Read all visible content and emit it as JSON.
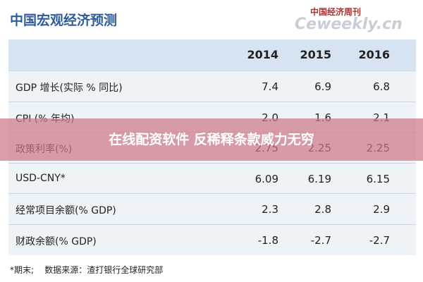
{
  "title": "中国宏观经济预测",
  "logo": {
    "cn": "中国经济周刊",
    "en": "Ceweekly.cn"
  },
  "table": {
    "header": [
      "2014",
      "2015",
      "2016"
    ],
    "rows": [
      [
        "GDP 增长(实际 % 同比)",
        "7.4",
        "6.9",
        "6.8"
      ],
      [
        "CPI (% 年均)",
        "2.0",
        "1.6",
        "2.1"
      ],
      [
        "政策利率(%)",
        "2.75",
        "2.25",
        "2.25"
      ],
      [
        "USD-CNY*",
        "6.09",
        "6.19",
        "6.15"
      ],
      [
        "经常项目余额(% GDP)",
        "2.3",
        "2.8",
        "2.9"
      ],
      [
        "财政余额(% GDP)",
        "-1.8",
        "-2.7",
        "-2.7"
      ]
    ]
  },
  "footnote": "*期末;    数据来源：渣打银行全球研究部",
  "banner": "在线配资软件 反稀释条款威力无穷"
}
